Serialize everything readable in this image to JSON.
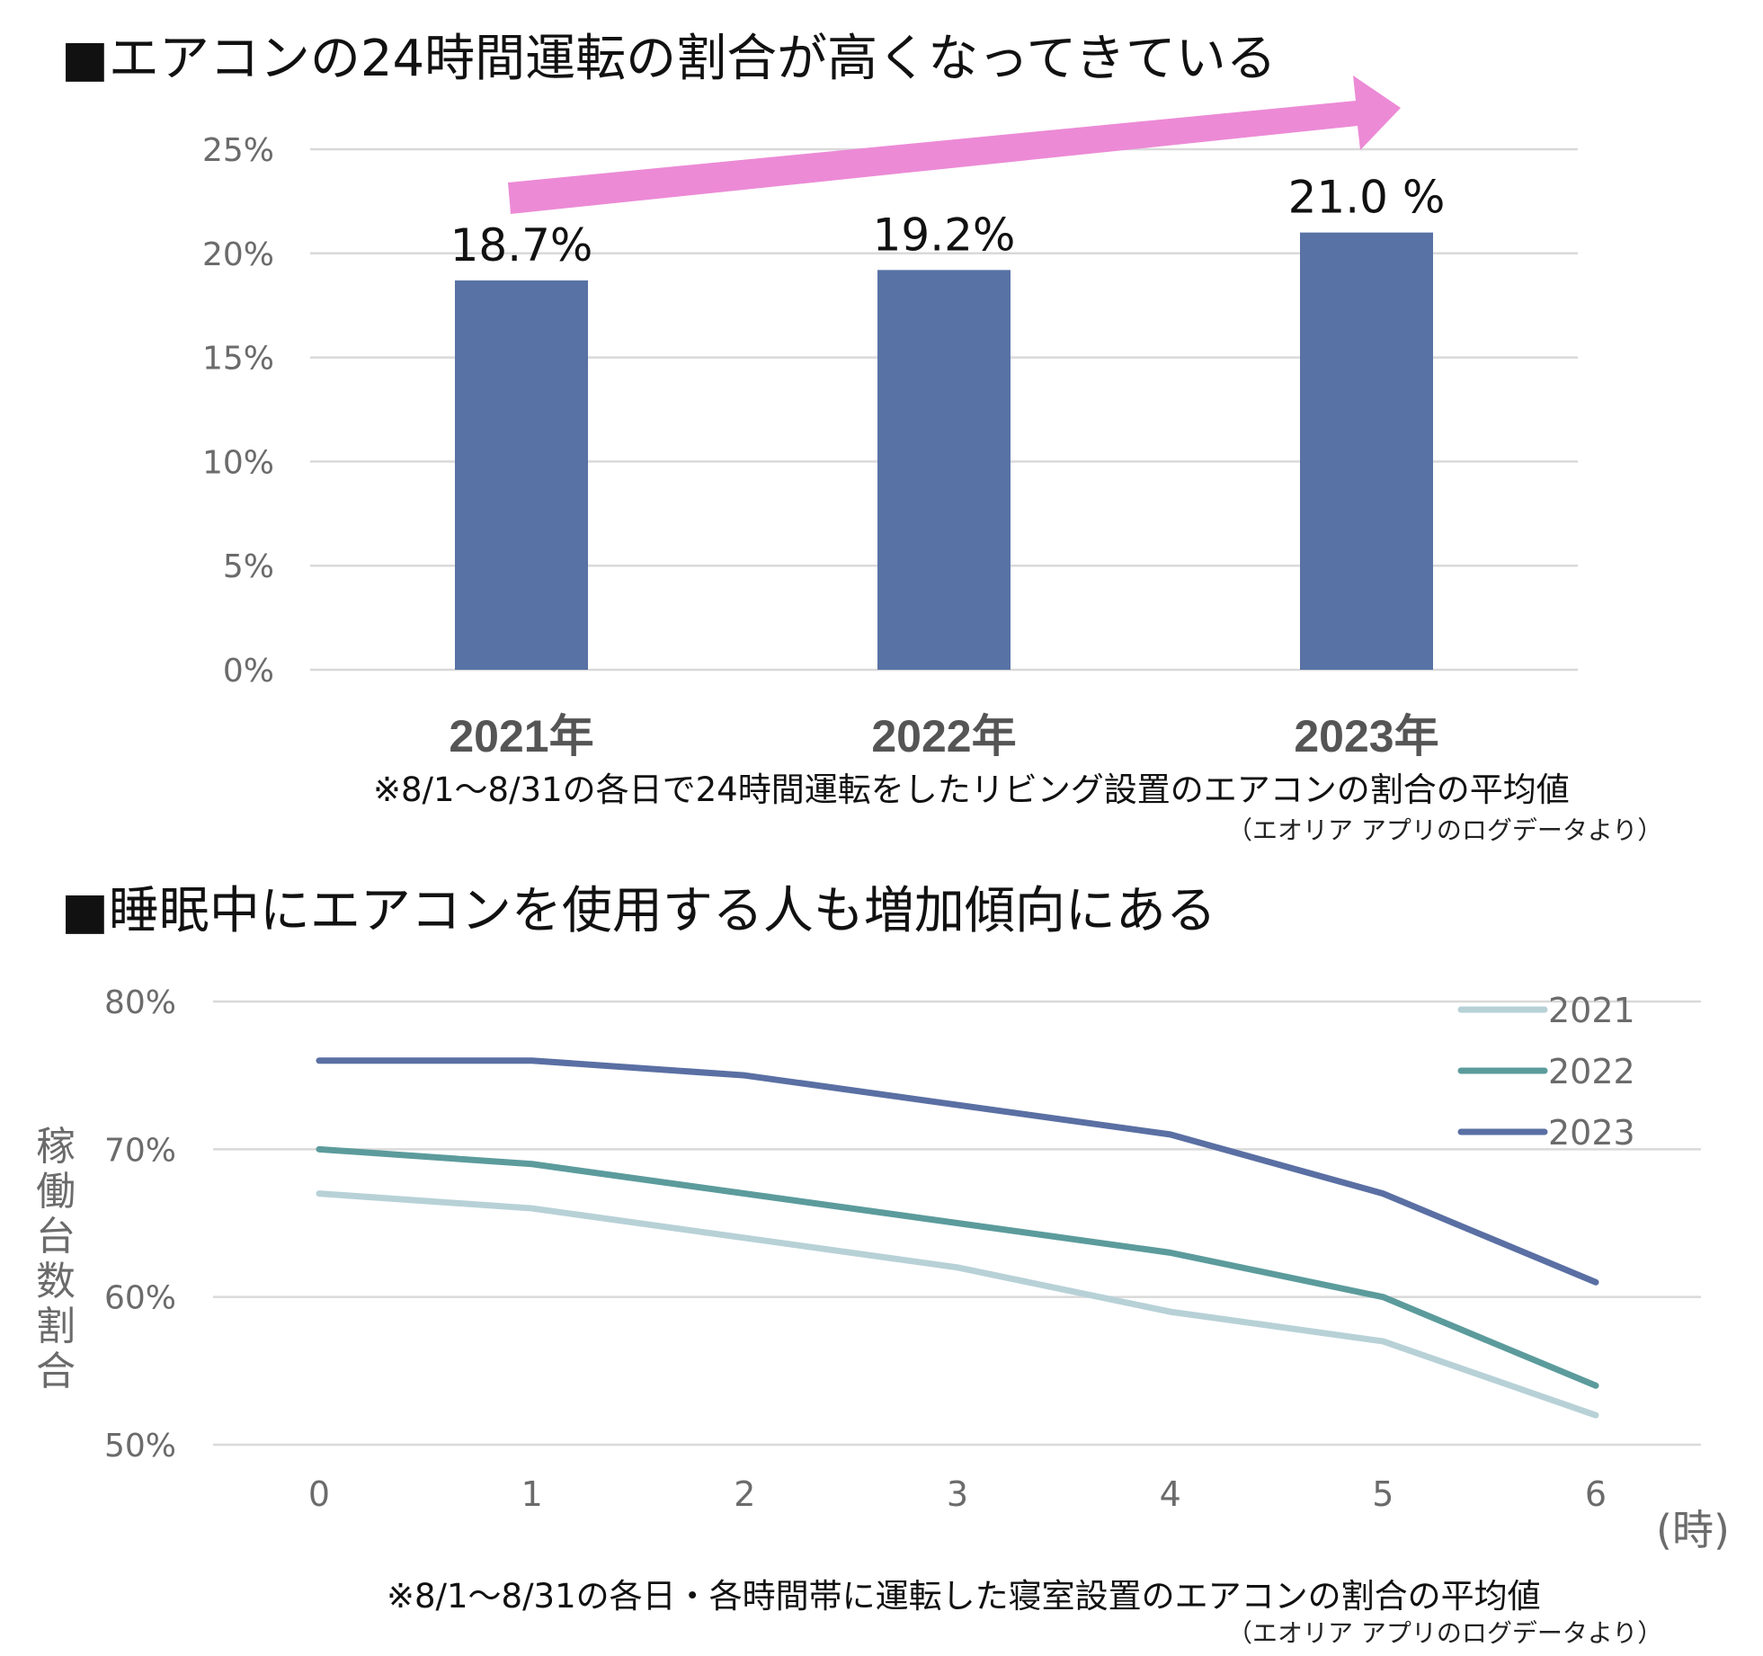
{
  "titles": {
    "bar": "■エアコンの24時間運転の割合が高くなってきている",
    "line": "■睡眠中にエアコンを使用する人も増加傾向にある"
  },
  "notes": {
    "bar_note": "※8/1～8/31の各日で24時間運転をしたリビング設置のエアコンの割合の平均値",
    "bar_source": "（エオリア アプリのログデータより）",
    "line_note": "※8/1～8/31の各日・各時間帯に運転した寝室設置のエアコンの割合の平均値",
    "line_source": "（エオリア アプリのログデータより）"
  },
  "colors": {
    "bar": "#5872a5",
    "arrow": "#ec8ad6",
    "grid": "#d9d9d9"
  },
  "chart_data": [
    {
      "type": "bar",
      "title": "■エアコンの24時間運転の割合が高くなってきている",
      "categories": [
        "2021年",
        "2022年",
        "2023年"
      ],
      "values": [
        18.7,
        19.2,
        21.0
      ],
      "data_labels": [
        "18.7%",
        "19.2%",
        "21.0 %"
      ],
      "ylim": [
        0,
        25
      ],
      "yticks": [
        0,
        5,
        10,
        15,
        20,
        25
      ],
      "ytick_labels": [
        "0%",
        "5%",
        "10%",
        "15%",
        "20%",
        "25%"
      ],
      "annotation": "upward-arrow"
    },
    {
      "type": "line",
      "title": "■睡眠中にエアコンを使用する人も増加傾向にある",
      "ylabel": "稼働台数割合",
      "xlabel": "(時)",
      "x": [
        0,
        1,
        2,
        3,
        4,
        5,
        6
      ],
      "ylim": [
        50,
        80
      ],
      "yticks": [
        50,
        60,
        70,
        80
      ],
      "ytick_labels": [
        "50%",
        "60%",
        "70%",
        "80%"
      ],
      "legend_position": "top-right",
      "series": [
        {
          "name": "2021",
          "color": "#b7d1d7",
          "values": [
            67,
            66,
            64,
            62,
            59,
            57,
            52
          ]
        },
        {
          "name": "2022",
          "color": "#5c9b9c",
          "values": [
            70,
            69,
            67,
            65,
            63,
            60,
            54
          ]
        },
        {
          "name": "2023",
          "color": "#5a6fa3",
          "values": [
            76,
            76,
            75,
            73,
            71,
            67,
            61
          ]
        }
      ]
    }
  ]
}
